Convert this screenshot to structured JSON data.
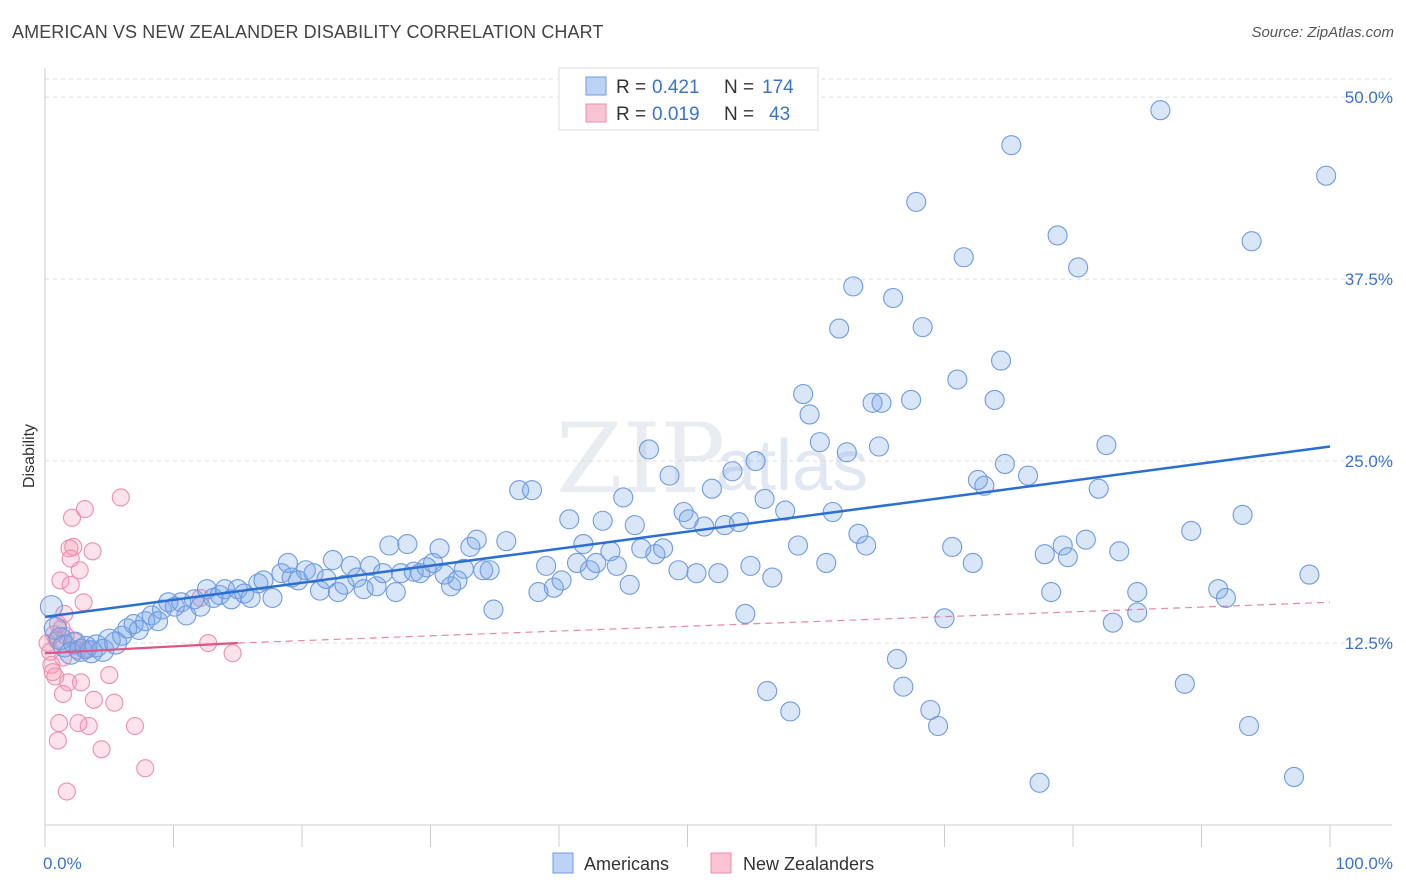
{
  "title": "AMERICAN VS NEW ZEALANDER DISABILITY CORRELATION CHART",
  "source": "Source: ZipAtlas.com",
  "watermark": {
    "zip": "ZIP",
    "atlas": "atlas"
  },
  "legend": {
    "r_label": "R =",
    "n_label": "N =",
    "rows": [
      {
        "r": "0.421",
        "n": "174"
      },
      {
        "r": "0.019",
        "n": "43"
      }
    ]
  },
  "chart_data": {
    "type": "scatter",
    "title": "AMERICAN VS NEW ZEALANDER DISABILITY CORRELATION CHART",
    "xlabel": "",
    "ylabel": "Disability",
    "xlim": [
      0,
      100
    ],
    "ylim": [
      0,
      52
    ],
    "x_tick_labels": [
      "0.0%",
      "100.0%"
    ],
    "y_ticks": [
      12.5,
      25.0,
      37.5,
      50.0
    ],
    "y_tick_labels": [
      "12.5%",
      "25.0%",
      "37.5%",
      "50.0%"
    ],
    "grid": true,
    "legend_position": "top-center",
    "colors": {
      "americans": "#5b8fe0",
      "new_zealanders": "#f08aa8",
      "trend_americans": "#2a6fd1",
      "trend_nz": "#e05585"
    },
    "series": [
      {
        "name": "Americans",
        "trend": {
          "x0": 0,
          "y0": 14.3,
          "x1": 100,
          "y1": 26.0
        },
        "points": [
          [
            0.5,
            15.0
          ],
          [
            0.8,
            13.5
          ],
          [
            1.2,
            12.8
          ],
          [
            1.5,
            12.3
          ],
          [
            2.0,
            11.8
          ],
          [
            2.3,
            12.5
          ],
          [
            2.8,
            12.0
          ],
          [
            3.2,
            12.2
          ],
          [
            3.6,
            11.9
          ],
          [
            4.0,
            12.3
          ],
          [
            4.5,
            12.0
          ],
          [
            5.0,
            12.7
          ],
          [
            5.5,
            12.5
          ],
          [
            6.0,
            13.0
          ],
          [
            6.4,
            13.5
          ],
          [
            6.9,
            13.8
          ],
          [
            7.3,
            13.4
          ],
          [
            7.8,
            14.0
          ],
          [
            8.3,
            14.4
          ],
          [
            8.8,
            14.0
          ],
          [
            9.1,
            14.8
          ],
          [
            9.6,
            15.3
          ],
          [
            10.1,
            15.0
          ],
          [
            10.6,
            15.3
          ],
          [
            11.0,
            14.4
          ],
          [
            11.6,
            15.5
          ],
          [
            12.1,
            15.0
          ],
          [
            12.6,
            16.2
          ],
          [
            13.1,
            15.6
          ],
          [
            13.6,
            15.8
          ],
          [
            14.0,
            16.2
          ],
          [
            14.5,
            15.5
          ],
          [
            15.0,
            16.2
          ],
          [
            15.5,
            15.9
          ],
          [
            16.0,
            15.6
          ],
          [
            16.6,
            16.6
          ],
          [
            17.0,
            16.8
          ],
          [
            17.7,
            15.6
          ],
          [
            18.4,
            17.3
          ],
          [
            18.9,
            18.0
          ],
          [
            19.2,
            17.0
          ],
          [
            19.7,
            16.8
          ],
          [
            20.3,
            17.5
          ],
          [
            20.9,
            17.3
          ],
          [
            21.4,
            16.1
          ],
          [
            21.9,
            16.9
          ],
          [
            22.4,
            18.2
          ],
          [
            22.8,
            16.0
          ],
          [
            23.3,
            16.5
          ],
          [
            23.8,
            17.8
          ],
          [
            24.3,
            17.0
          ],
          [
            24.8,
            16.2
          ],
          [
            25.3,
            17.8
          ],
          [
            25.8,
            16.4
          ],
          [
            26.3,
            17.3
          ],
          [
            26.8,
            19.2
          ],
          [
            27.3,
            16.0
          ],
          [
            27.7,
            17.3
          ],
          [
            28.2,
            19.3
          ],
          [
            28.7,
            17.4
          ],
          [
            29.2,
            17.3
          ],
          [
            29.7,
            17.7
          ],
          [
            30.2,
            18.0
          ],
          [
            30.7,
            19.0
          ],
          [
            31.1,
            17.2
          ],
          [
            31.6,
            16.4
          ],
          [
            32.1,
            16.8
          ],
          [
            32.6,
            17.6
          ],
          [
            33.1,
            19.1
          ],
          [
            33.6,
            19.6
          ],
          [
            34.1,
            17.5
          ],
          [
            34.6,
            17.5
          ],
          [
            34.9,
            14.8
          ],
          [
            35.9,
            19.5
          ],
          [
            36.9,
            23.0
          ],
          [
            37.9,
            23.0
          ],
          [
            38.4,
            16.0
          ],
          [
            39.0,
            17.8
          ],
          [
            39.6,
            16.3
          ],
          [
            40.2,
            16.8
          ],
          [
            40.8,
            21.0
          ],
          [
            41.4,
            18.0
          ],
          [
            41.9,
            19.3
          ],
          [
            42.4,
            17.5
          ],
          [
            42.9,
            18.0
          ],
          [
            43.4,
            20.9
          ],
          [
            44.0,
            18.8
          ],
          [
            44.5,
            17.8
          ],
          [
            45.0,
            22.5
          ],
          [
            45.5,
            16.5
          ],
          [
            45.9,
            20.6
          ],
          [
            46.4,
            19.0
          ],
          [
            47.0,
            25.8
          ],
          [
            47.5,
            18.6
          ],
          [
            48.1,
            19.0
          ],
          [
            48.6,
            24.0
          ],
          [
            49.3,
            17.5
          ],
          [
            49.7,
            21.5
          ],
          [
            50.1,
            21.0
          ],
          [
            50.7,
            17.3
          ],
          [
            51.3,
            20.5
          ],
          [
            51.9,
            23.1
          ],
          [
            52.4,
            17.3
          ],
          [
            52.9,
            20.6
          ],
          [
            53.5,
            24.3
          ],
          [
            54.0,
            20.8
          ],
          [
            54.5,
            14.5
          ],
          [
            54.9,
            17.8
          ],
          [
            55.3,
            25.0
          ],
          [
            56.0,
            22.4
          ],
          [
            56.6,
            17.0
          ],
          [
            56.2,
            9.2
          ],
          [
            57.6,
            21.6
          ],
          [
            58.0,
            7.8
          ],
          [
            58.6,
            19.2
          ],
          [
            59.0,
            29.6
          ],
          [
            59.5,
            28.2
          ],
          [
            60.3,
            26.3
          ],
          [
            60.8,
            18.0
          ],
          [
            61.3,
            21.5
          ],
          [
            61.8,
            34.1
          ],
          [
            62.4,
            25.6
          ],
          [
            62.9,
            37.0
          ],
          [
            63.3,
            20.0
          ],
          [
            63.9,
            19.2
          ],
          [
            64.4,
            29.0
          ],
          [
            64.9,
            26.0
          ],
          [
            65.1,
            29.0
          ],
          [
            66.0,
            36.2
          ],
          [
            66.3,
            11.4
          ],
          [
            66.8,
            9.5
          ],
          [
            67.4,
            29.2
          ],
          [
            67.8,
            42.8
          ],
          [
            68.3,
            34.2
          ],
          [
            68.9,
            7.9
          ],
          [
            69.5,
            6.8
          ],
          [
            70.0,
            14.2
          ],
          [
            70.6,
            19.1
          ],
          [
            71.0,
            30.6
          ],
          [
            71.5,
            39.0
          ],
          [
            72.2,
            18.0
          ],
          [
            72.6,
            23.7
          ],
          [
            73.1,
            23.3
          ],
          [
            73.9,
            29.2
          ],
          [
            74.4,
            31.9
          ],
          [
            74.7,
            24.8
          ],
          [
            75.2,
            46.7
          ],
          [
            76.5,
            24.0
          ],
          [
            77.4,
            2.9
          ],
          [
            77.8,
            18.6
          ],
          [
            78.3,
            16.0
          ],
          [
            78.8,
            40.5
          ],
          [
            79.2,
            19.2
          ],
          [
            79.6,
            18.4
          ],
          [
            80.4,
            38.3
          ],
          [
            81.0,
            19.6
          ],
          [
            82.0,
            23.1
          ],
          [
            82.6,
            26.1
          ],
          [
            83.1,
            13.9
          ],
          [
            83.6,
            18.8
          ],
          [
            85.0,
            16.0
          ],
          [
            85.0,
            14.6
          ],
          [
            86.8,
            49.1
          ],
          [
            88.7,
            9.7
          ],
          [
            89.2,
            20.2
          ],
          [
            91.3,
            16.2
          ],
          [
            91.9,
            15.6
          ],
          [
            93.2,
            21.3
          ],
          [
            93.7,
            6.8
          ],
          [
            93.9,
            40.1
          ],
          [
            97.2,
            3.3
          ],
          [
            98.4,
            17.2
          ],
          [
            99.7,
            44.6
          ]
        ]
      },
      {
        "name": "New Zealanders",
        "trend": {
          "x0": 0,
          "y0": 11.8,
          "x1": 15,
          "y1": 12.5
        },
        "trend_dashed": {
          "x0": 15,
          "y0": 12.5,
          "x1": 100,
          "y1": 15.3
        },
        "points": [
          [
            0.2,
            12.5
          ],
          [
            0.4,
            11.9
          ],
          [
            0.5,
            11.0
          ],
          [
            0.6,
            10.5
          ],
          [
            0.7,
            13.1
          ],
          [
            0.8,
            10.2
          ],
          [
            0.9,
            12.7
          ],
          [
            1.0,
            13.8
          ],
          [
            1.0,
            5.8
          ],
          [
            1.1,
            7.0
          ],
          [
            1.2,
            16.8
          ],
          [
            1.3,
            13.5
          ],
          [
            1.4,
            9.0
          ],
          [
            1.4,
            11.5
          ],
          [
            1.5,
            14.5
          ],
          [
            1.6,
            13.0
          ],
          [
            1.7,
            2.3
          ],
          [
            1.8,
            9.8
          ],
          [
            1.9,
            19.0
          ],
          [
            2.0,
            16.5
          ],
          [
            2.0,
            18.3
          ],
          [
            2.1,
            21.1
          ],
          [
            2.2,
            19.1
          ],
          [
            2.3,
            12.6
          ],
          [
            2.5,
            12.0
          ],
          [
            2.6,
            7.0
          ],
          [
            2.7,
            17.5
          ],
          [
            2.8,
            9.8
          ],
          [
            3.0,
            15.3
          ],
          [
            3.1,
            21.7
          ],
          [
            3.3,
            12.1
          ],
          [
            3.4,
            6.8
          ],
          [
            3.7,
            18.8
          ],
          [
            3.8,
            8.6
          ],
          [
            4.4,
            5.2
          ],
          [
            5.0,
            10.3
          ],
          [
            5.4,
            8.4
          ],
          [
            5.9,
            22.5
          ],
          [
            7.0,
            6.8
          ],
          [
            7.8,
            3.9
          ],
          [
            12.1,
            15.6
          ],
          [
            12.7,
            12.5
          ],
          [
            14.6,
            11.8
          ]
        ]
      }
    ]
  },
  "bottom_legend": {
    "americans": "Americans",
    "new_zealanders": "New Zealanders"
  }
}
